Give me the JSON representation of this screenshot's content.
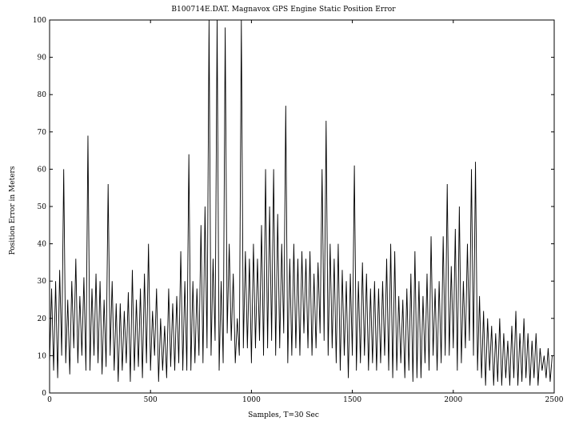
{
  "chart_data": {
    "type": "line",
    "title": "B100714E.DAT. Magnavox GPS Engine Static Position Error",
    "xlabel": "Samples, T=30 Sec",
    "ylabel": "Position Error in Meters",
    "xlim": [
      0,
      2500
    ],
    "ylim": [
      0,
      100
    ],
    "xticks": [
      0,
      500,
      1000,
      1500,
      2000,
      2500
    ],
    "yticks": [
      0,
      10,
      20,
      30,
      40,
      50,
      60,
      70,
      80,
      90,
      100
    ],
    "grid": false,
    "legend": "none",
    "line_color": "#000000",
    "series": [
      {
        "points_per_step": 10,
        "values": [
          8,
          28,
          6,
          30,
          4,
          33,
          10,
          60,
          8,
          25,
          5,
          30,
          12,
          36,
          8,
          26,
          10,
          31,
          6,
          69,
          6,
          28,
          10,
          32,
          8,
          30,
          5,
          25,
          7,
          56,
          10,
          30,
          6,
          24,
          3,
          24,
          6,
          22,
          8,
          27,
          3,
          33,
          6,
          25,
          7,
          28,
          4,
          32,
          8,
          40,
          6,
          22,
          10,
          28,
          3,
          20,
          6,
          18,
          4,
          28,
          7,
          24,
          6,
          26,
          8,
          38,
          6,
          30,
          6,
          64,
          6,
          30,
          8,
          28,
          10,
          45,
          8,
          50,
          12,
          100,
          10,
          36,
          14,
          100,
          6,
          30,
          8,
          98,
          16,
          40,
          14,
          32,
          8,
          20,
          10,
          100,
          12,
          38,
          12,
          36,
          8,
          40,
          12,
          36,
          14,
          45,
          10,
          60,
          12,
          50,
          14,
          60,
          10,
          48,
          12,
          40,
          16,
          77,
          8,
          36,
          10,
          40,
          12,
          36,
          10,
          38,
          16,
          36,
          12,
          38,
          10,
          32,
          12,
          35,
          16,
          60,
          14,
          73,
          10,
          40,
          12,
          36,
          8,
          40,
          6,
          33,
          10,
          30,
          4,
          32,
          10,
          61,
          6,
          30,
          8,
          35,
          10,
          32,
          6,
          28,
          8,
          30,
          6,
          28,
          8,
          30,
          10,
          36,
          6,
          40,
          4,
          38,
          6,
          26,
          8,
          25,
          4,
          28,
          6,
          32,
          3,
          38,
          4,
          30,
          4,
          26,
          8,
          32,
          6,
          42,
          10,
          28,
          6,
          30,
          8,
          42,
          10,
          56,
          10,
          34,
          12,
          44,
          6,
          50,
          8,
          30,
          12,
          40,
          14,
          60,
          10,
          62,
          6,
          26,
          4,
          22,
          2,
          20,
          6,
          18,
          2,
          16,
          3,
          20,
          2,
          16,
          4,
          14,
          2,
          18,
          4,
          22,
          2,
          16,
          3,
          20,
          4,
          16,
          2,
          14,
          4,
          16,
          2,
          12,
          6,
          10,
          4,
          12,
          3,
          10
        ]
      }
    ]
  }
}
